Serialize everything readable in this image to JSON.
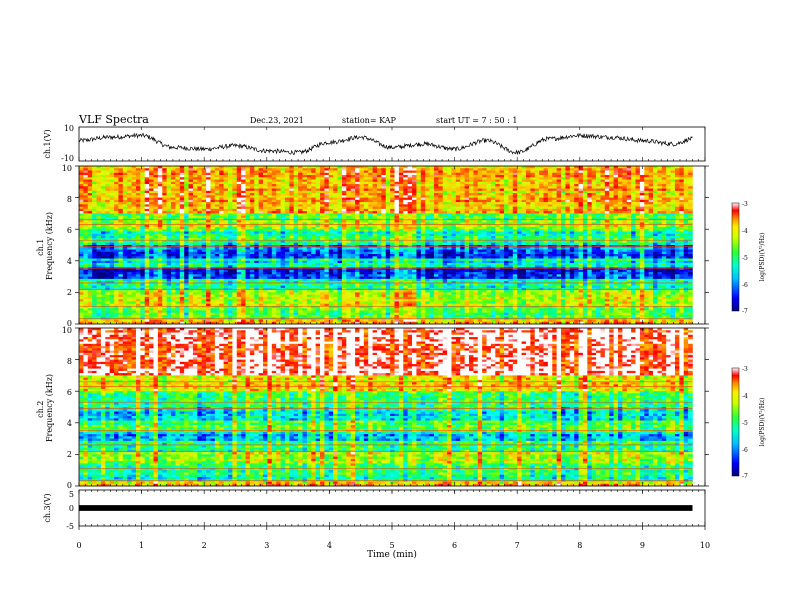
{
  "header": {
    "title": "VLF Spectra",
    "date": "Dec.23, 2021",
    "station": "station= KAP",
    "start": "start  UT =   7 : 50 : 1"
  },
  "chart_data": [
    {
      "type": "line",
      "panel": "ch1-waveform",
      "ylabel": "ch.1(V)",
      "ylim": [
        -10,
        10
      ],
      "yticks": [
        "10",
        "-10"
      ],
      "xlim": [
        0,
        10
      ],
      "approx_trace": {
        "x_min": [
          0,
          0.5,
          1,
          1.5,
          2,
          2.5,
          3,
          3.5,
          4,
          4.5,
          5,
          5.5,
          6,
          6.5,
          7,
          7.5,
          8,
          8.5,
          9,
          9.5,
          9.8
        ],
        "y": [
          2,
          4,
          5,
          -2,
          -3,
          -1,
          -4,
          -5,
          1,
          4,
          -2,
          0,
          -3,
          2,
          -5,
          3,
          5,
          4,
          2,
          0,
          3
        ]
      }
    },
    {
      "type": "heatmap",
      "panel": "ch1-spectrogram",
      "ylabel": "ch.1\nFrequency (kHz)",
      "ylim": [
        0,
        10
      ],
      "yticks": [
        "0",
        "2",
        "4",
        "6",
        "8",
        "10"
      ],
      "xlim": [
        0,
        9.8
      ],
      "colorbar": {
        "label": "log(PSD)(V²/Hz)",
        "range": [
          -7,
          -3
        ],
        "ticks": [
          "-3",
          "-4",
          "-5",
          "-6",
          "-7"
        ]
      },
      "approx_band_level": {
        "freq_edges_khz": [
          0,
          0.3,
          1.2,
          2.2,
          2.8,
          3.6,
          4.2,
          5.0,
          6.0,
          7.0,
          10
        ],
        "log_psd": [
          -4.2,
          -5.0,
          -4.6,
          -5.4,
          -6.6,
          -5.6,
          -6.2,
          -5.3,
          -4.8,
          -4.0
        ]
      }
    },
    {
      "type": "heatmap",
      "panel": "ch2-spectrogram",
      "ylabel": "ch.2\nFrequency (kHz)",
      "ylim": [
        0,
        10
      ],
      "yticks": [
        "0",
        "2",
        "4",
        "6",
        "8",
        "10"
      ],
      "xlim": [
        0,
        9.8
      ],
      "colorbar": {
        "label": "log(PSD)(V²/Hz)",
        "range": [
          -7,
          -3
        ],
        "ticks": [
          "-3",
          "-4",
          "-5",
          "-6",
          "-7"
        ]
      },
      "approx_band_level": {
        "freq_edges_khz": [
          0,
          0.3,
          1.5,
          2.2,
          2.8,
          3.5,
          4.2,
          5.0,
          6.0,
          7.0,
          10
        ],
        "log_psd": [
          -4.2,
          -5.2,
          -4.6,
          -5.2,
          -5.8,
          -5.0,
          -5.7,
          -5.0,
          -4.2,
          -3.2
        ]
      }
    },
    {
      "type": "line",
      "panel": "ch3-waveform",
      "ylabel": "ch.3(V)",
      "ylim": [
        -5,
        5
      ],
      "yticks": [
        "5",
        "0",
        "-5"
      ],
      "xlim": [
        0,
        10
      ],
      "approx_level": 0
    }
  ],
  "xaxis": {
    "label": "Time (min)",
    "ticks": [
      "0",
      "1",
      "2",
      "3",
      "4",
      "5",
      "6",
      "7",
      "8",
      "9",
      "10"
    ]
  },
  "colors": {
    "scale": [
      "#00007f",
      "#0000ff",
      "#00aaff",
      "#00ffff",
      "#00ff66",
      "#aaff00",
      "#ffff00",
      "#ff9900",
      "#ff0000",
      "#ffffff"
    ]
  }
}
